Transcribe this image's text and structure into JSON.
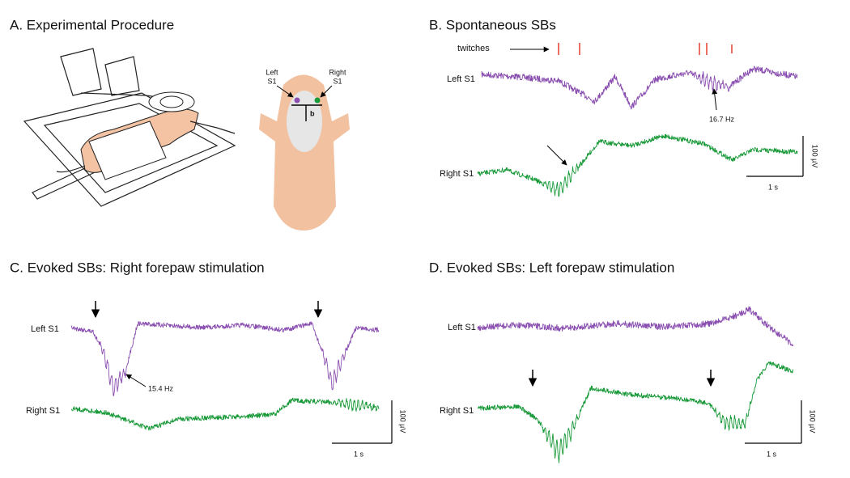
{
  "panel_a": {
    "title": "A. Experimental Procedure",
    "left_label": [
      "Left",
      "S1"
    ],
    "right_label": [
      "Right",
      "S1"
    ],
    "bregma": "b"
  },
  "panel_b": {
    "title": "B. Spontaneous SBs",
    "twitches": "twitches",
    "left": "Left S1",
    "right": "Right S1",
    "freq": "16.7 Hz",
    "scale_v": "100 µV",
    "scale_t": "1 s"
  },
  "panel_c": {
    "title": "C. Evoked SBs: Right forepaw stimulation",
    "left": "Left S1",
    "right": "Right S1",
    "freq": "15.4 Hz",
    "scale_v": "100 µV",
    "scale_t": "1 s"
  },
  "panel_d": {
    "title": "D. Evoked SBs: Left forepaw stimulation",
    "left": "Left S1",
    "right": "Right S1",
    "scale_v": "100 µV",
    "scale_t": "1 s"
  }
}
